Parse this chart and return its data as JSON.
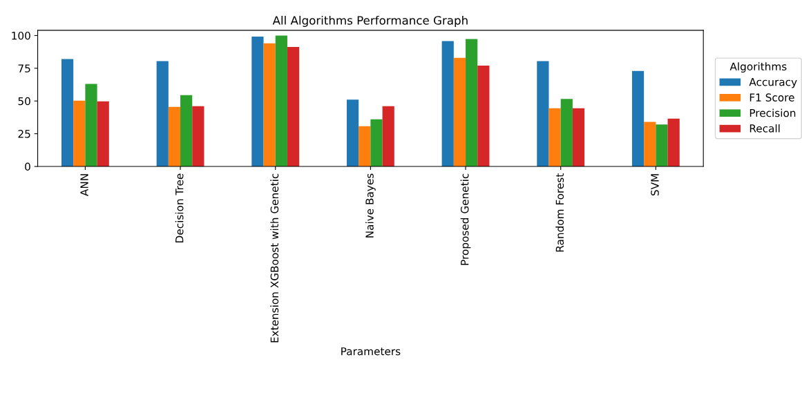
{
  "chart_data": {
    "type": "bar",
    "title": "All Algorithms Performance Graph",
    "xlabel": "Parameters",
    "legend_title": "Algorithms",
    "categories": [
      "ANN",
      "Decision Tree",
      "Extension XGBoost with Genetic",
      "Naive Bayes",
      "Proposed Genetic",
      "Random Forest",
      "SVM"
    ],
    "series": [
      {
        "name": "Accuracy",
        "color": "#1f77b4",
        "values": [
          82,
          80.4,
          99.2,
          51,
          95.8,
          80.4,
          73
        ]
      },
      {
        "name": "F1 Score",
        "color": "#ff7f0e",
        "values": [
          50.3,
          45.5,
          94,
          30.7,
          83,
          44.4,
          34
        ]
      },
      {
        "name": "Precision",
        "color": "#2ca02c",
        "values": [
          63,
          54.5,
          100,
          36,
          97.3,
          51.6,
          32
        ]
      },
      {
        "name": "Recall",
        "color": "#d62728",
        "values": [
          49.7,
          46,
          91.3,
          46,
          77,
          44.4,
          36.5
        ]
      }
    ],
    "ylim": [
      0,
      104
    ],
    "yticks": [
      0,
      25,
      50,
      75,
      100
    ],
    "legend": "right",
    "grid": false
  }
}
